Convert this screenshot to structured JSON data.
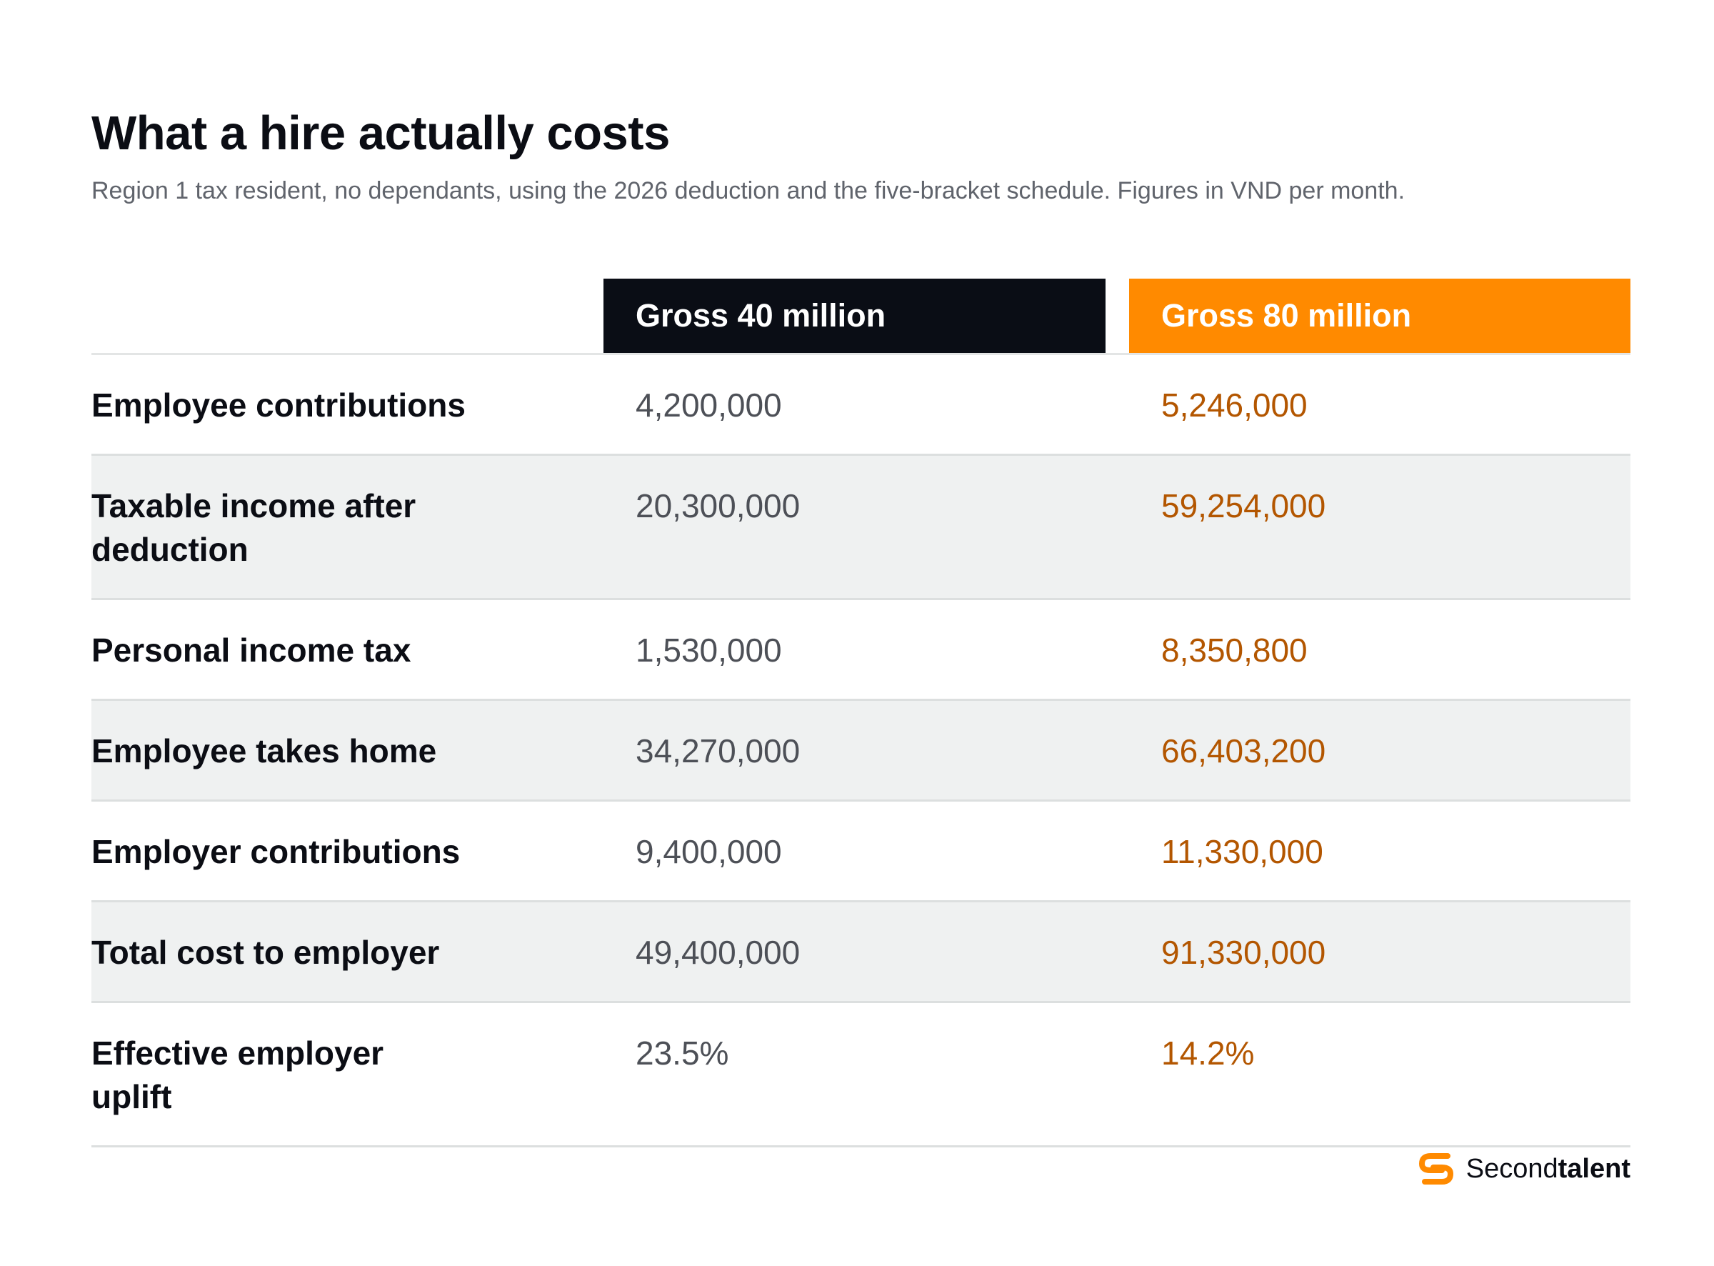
{
  "title": "What a hire actually costs",
  "subtitle": "Region 1 tax resident, no dependants, using the 2026 deduction and the five-bracket schedule. Figures in VND per month.",
  "table": {
    "columns": [
      "Gross 40 million",
      "Gross 80 million"
    ],
    "rows": [
      {
        "label": "Employee contributions",
        "values": [
          "4,200,000",
          "5,246,000"
        ]
      },
      {
        "label": "Taxable income after deduction",
        "values": [
          "20,300,000",
          "59,254,000"
        ]
      },
      {
        "label": "Personal income tax",
        "values": [
          "1,530,000",
          "8,350,800"
        ]
      },
      {
        "label": "Employee takes home",
        "values": [
          "34,270,000",
          "66,403,200"
        ]
      },
      {
        "label": "Employer contributions",
        "values": [
          "9,400,000",
          "11,330,000"
        ]
      },
      {
        "label": "Total cost to employer",
        "values": [
          "49,400,000",
          "91,330,000"
        ]
      },
      {
        "label": "Effective employer uplift",
        "values": [
          "23.5%",
          "14.2%"
        ]
      }
    ]
  },
  "brand": {
    "name_regular": "Second",
    "name_bold": "talent",
    "icon": "secondtalent-logo-icon",
    "color": "#ff8a00"
  },
  "colors": {
    "header_dark": "#0a0d15",
    "header_accent": "#ff8a00",
    "value_accent": "#b35600"
  }
}
